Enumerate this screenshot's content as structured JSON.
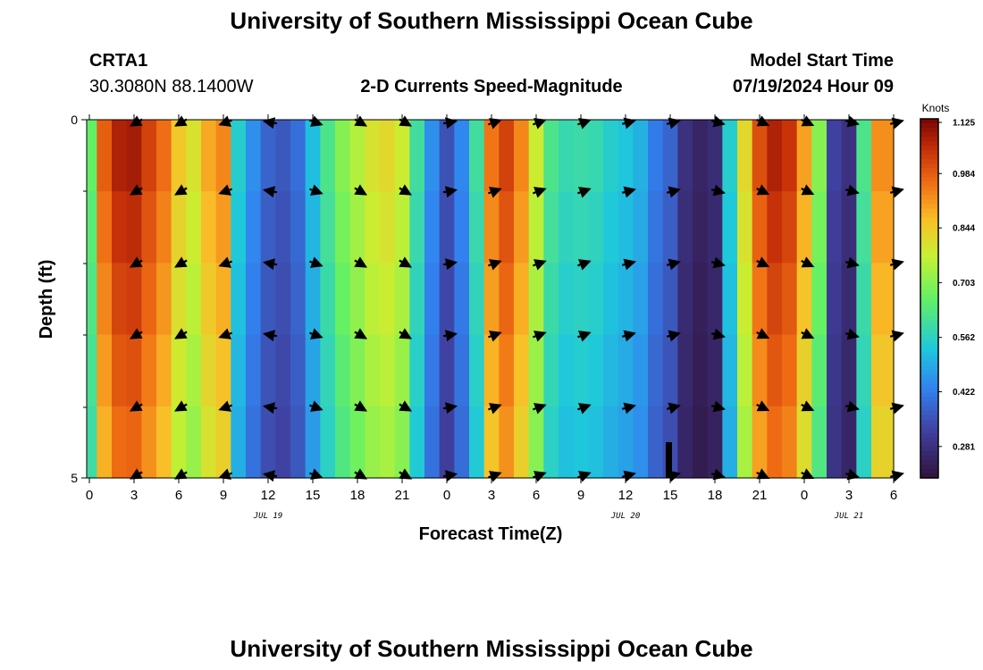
{
  "page": {
    "title_top": "University of Southern Mississippi Ocean Cube",
    "title_bottom": "University of Southern Mississippi Ocean Cube",
    "station": "CRTA1",
    "coords": "30.3080N  88.1400W",
    "plot_title": "2-D Currents Speed-Magnitude",
    "model_label": "Model Start Time",
    "model_time": "07/19/2024 Hour 09"
  },
  "chart_data": {
    "type": "heatmap",
    "title": "2-D Currents Speed-Magnitude",
    "xlabel": "Forecast Time(Z)",
    "ylabel": "Depth (ft)",
    "colorbar_label": "Knots",
    "colorbar_ticks": [
      "1.125",
      "0.984",
      "0.844",
      "0.703",
      "0.562",
      "0.422",
      "0.281"
    ],
    "color_range": [
      0.2,
      1.125
    ],
    "x_tick_labels": [
      "0",
      "3",
      "6",
      "9",
      "12",
      "15",
      "18",
      "21",
      "0",
      "3",
      "6",
      "9",
      "12",
      "15",
      "18",
      "21",
      "0",
      "3",
      "6"
    ],
    "y_tick_labels": [
      "0",
      "5"
    ],
    "y_range": [
      0,
      5
    ],
    "x_range_hours": [
      0,
      54
    ],
    "date_labels": [
      {
        "label": "JUL 19",
        "hour": 12
      },
      {
        "label": "JUL 20",
        "hour": 36
      },
      {
        "label": "JUL 21",
        "hour": 51
      }
    ],
    "speed_by_hour": [
      0.66,
      0.98,
      1.07,
      1.08,
      1.02,
      0.96,
      0.85,
      0.8,
      0.89,
      0.93,
      0.55,
      0.45,
      0.38,
      0.36,
      0.4,
      0.52,
      0.62,
      0.7,
      0.75,
      0.8,
      0.82,
      0.78,
      0.6,
      0.45,
      0.35,
      0.44,
      0.6,
      0.95,
      1.02,
      0.93,
      0.78,
      0.62,
      0.58,
      0.59,
      0.58,
      0.55,
      0.53,
      0.5,
      0.42,
      0.38,
      0.28,
      0.25,
      0.27,
      0.55,
      0.82,
      1.0,
      1.07,
      1.04,
      0.9,
      0.7,
      0.32,
      0.28,
      0.62,
      0.92,
      0.92
    ],
    "arrow_direction_deg_by_column": [
      200,
      210,
      210,
      200,
      170,
      -20,
      -30,
      -30,
      10,
      20,
      20,
      20,
      15,
      15,
      -15,
      -25,
      -25,
      -15,
      15
    ]
  }
}
